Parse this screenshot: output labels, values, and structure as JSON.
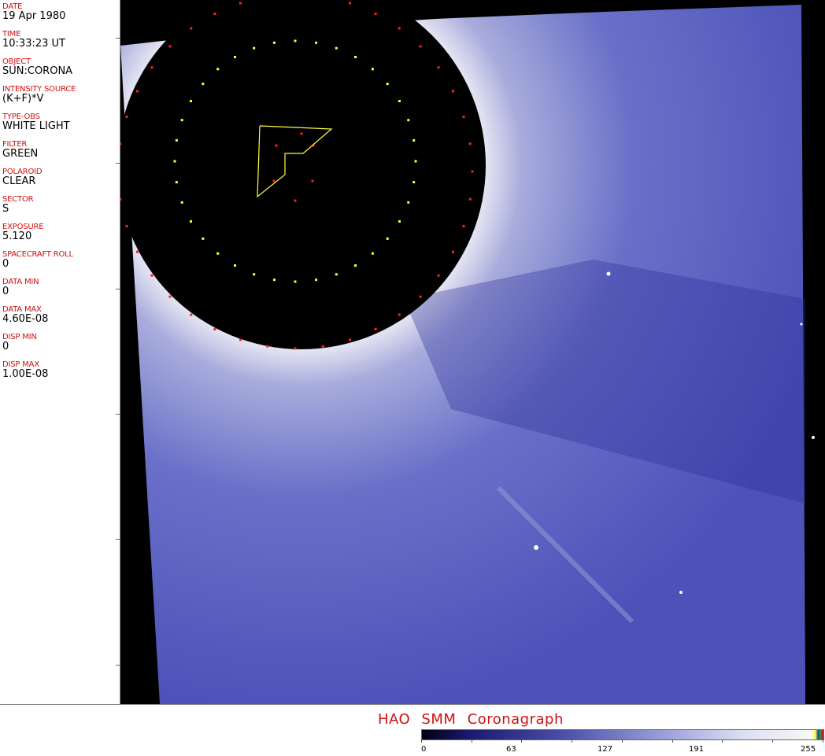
{
  "header_fields": [
    {
      "label": "DATE",
      "value": "19 Apr 1980"
    },
    {
      "label": "TIME",
      "value": "10:33:23 UT"
    },
    {
      "label": "OBJECT",
      "value": "SUN:CORONA"
    },
    {
      "label": "INTENSITY SOURCE",
      "value": "(K+F)*V"
    },
    {
      "label": "TYPE-OBS",
      "value": "WHITE LIGHT"
    },
    {
      "label": "FILTER",
      "value": "GREEN"
    },
    {
      "label": "POLAROID",
      "value": "CLEAR"
    },
    {
      "label": "SECTOR",
      "value": "S"
    },
    {
      "label": "EXPOSURE",
      "value": "5.120"
    },
    {
      "label": "SPACECRAFT ROLL",
      "value": "0"
    },
    {
      "label": "DATA MIN",
      "value": "0"
    },
    {
      "label": "DATA MAX",
      "value": "4.60E-08"
    },
    {
      "label": "DISP MIN",
      "value": "0"
    },
    {
      "label": "DISP MAX",
      "value": "1.00E-08"
    }
  ],
  "footer": {
    "title": "HAO SMM Coronagraph"
  },
  "colorbar": {
    "ticks": [
      "0",
      "63",
      "127",
      "191",
      "255"
    ],
    "colors": {
      "low": "#000010",
      "mid": "#4a4ea8",
      "high": "#f8f8f8"
    }
  }
}
